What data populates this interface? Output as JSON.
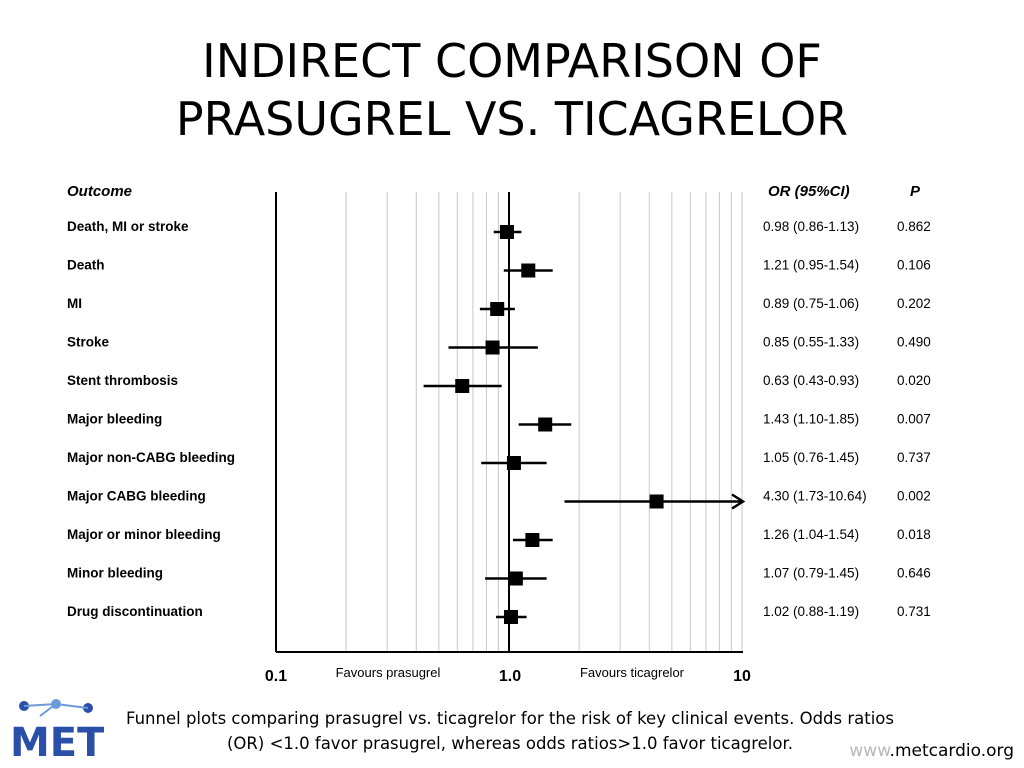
{
  "slide": {
    "title_line1": "INDIRECT COMPARISON OF",
    "title_line2": "PRASUGREL VS. TICAGRELOR",
    "caption_line1": "Funnel plots comparing prasugrel vs. ticagrelor for the risk of key clinical events. Odds ratios",
    "caption_line2": "(OR) <1.0 favor prasugrel, whereas odds ratios>1.0 favor ticagrelor.",
    "website_prefix": "www",
    "website_rest": ".metcardio.org",
    "logo_text": "MET"
  },
  "chart_data": {
    "type": "forest",
    "x_scale": "log",
    "xlim": [
      0.1,
      10
    ],
    "x_ticks": [
      "0.1",
      "1.0",
      "10"
    ],
    "x_tick_values": [
      0.1,
      1.0,
      10
    ],
    "reference_line": 1.0,
    "grid": true,
    "favours_left": "Favours prasugrel",
    "favours_right": "Favours ticagrelor",
    "headers": {
      "outcome": "Outcome",
      "or": "OR (95%CI)",
      "p": "P"
    },
    "rows": [
      {
        "outcome": "Death, MI or stroke",
        "or": 0.98,
        "lower": 0.86,
        "upper": 1.13,
        "or_text": "0.98 (0.86-1.13)",
        "p": "0.862"
      },
      {
        "outcome": "Death",
        "or": 1.21,
        "lower": 0.95,
        "upper": 1.54,
        "or_text": "1.21 (0.95-1.54)",
        "p": "0.106"
      },
      {
        "outcome": "MI",
        "or": 0.89,
        "lower": 0.75,
        "upper": 1.06,
        "or_text": "0.89 (0.75-1.06)",
        "p": "0.202"
      },
      {
        "outcome": "Stroke",
        "or": 0.85,
        "lower": 0.55,
        "upper": 1.33,
        "or_text": "0.85 (0.55-1.33)",
        "p": "0.490"
      },
      {
        "outcome": "Stent thrombosis",
        "or": 0.63,
        "lower": 0.43,
        "upper": 0.93,
        "or_text": "0.63 (0.43-0.93)",
        "p": "0.020"
      },
      {
        "outcome": "Major bleeding",
        "or": 1.43,
        "lower": 1.1,
        "upper": 1.85,
        "or_text": "1.43 (1.10-1.85)",
        "p": "0.007"
      },
      {
        "outcome": "Major non-CABG bleeding",
        "or": 1.05,
        "lower": 0.76,
        "upper": 1.45,
        "or_text": "1.05 (0.76-1.45)",
        "p": "0.737"
      },
      {
        "outcome": "Major CABG bleeding",
        "or": 4.3,
        "lower": 1.73,
        "upper": 10.64,
        "or_text": "4.30 (1.73-10.64)",
        "p": "0.002"
      },
      {
        "outcome": "Major or minor bleeding",
        "or": 1.26,
        "lower": 1.04,
        "upper": 1.54,
        "or_text": "1.26 (1.04-1.54)",
        "p": "0.018"
      },
      {
        "outcome": "Minor bleeding",
        "or": 1.07,
        "lower": 0.79,
        "upper": 1.45,
        "or_text": "1.07 (0.79-1.45)",
        "p": "0.646"
      },
      {
        "outcome": "Drug discontinuation",
        "or": 1.02,
        "lower": 0.88,
        "upper": 1.19,
        "or_text": "1.02 (0.88-1.19)",
        "p": "0.731"
      }
    ]
  }
}
